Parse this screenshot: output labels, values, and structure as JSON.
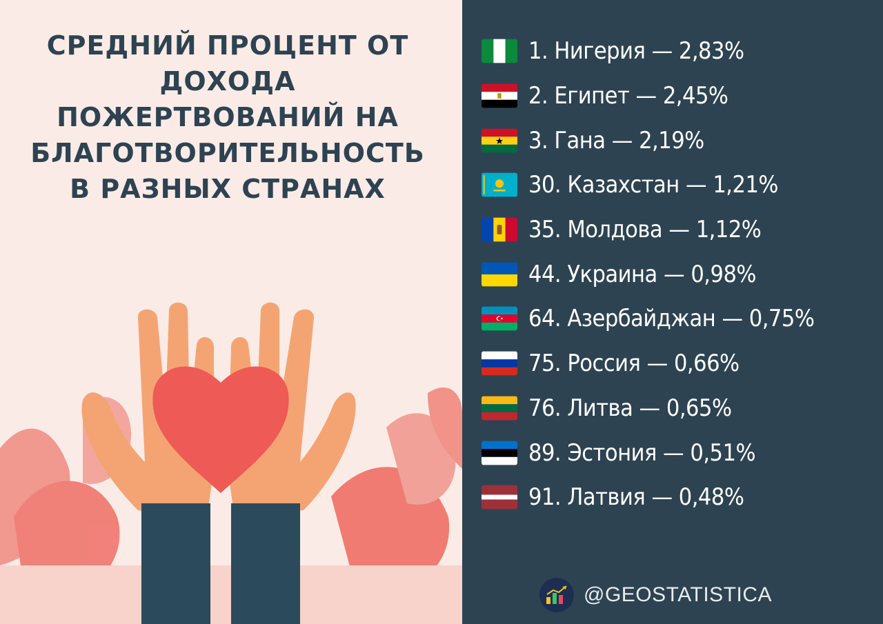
{
  "title_lines": [
    "СРЕДНИЙ ПРОЦЕНТ ОТ",
    "ДОХОДА",
    "ПОЖЕРТВОВАНИЙ НА",
    "БЛАГОТВОРИТЕЛЬНОСТЬ",
    "В РАЗНЫХ СТРАНАХ"
  ],
  "rankings": [
    {
      "rank": "1.",
      "country": "Нигерия",
      "value": "2,83%",
      "flag": "nigeria-flag-icon"
    },
    {
      "rank": "2.",
      "country": "Египет",
      "value": "2,45%",
      "flag": "egypt-flag-icon"
    },
    {
      "rank": "3.",
      "country": "Гана",
      "value": "2,19%",
      "flag": "ghana-flag-icon"
    },
    {
      "rank": "30.",
      "country": "Казахстан",
      "value": "1,21%",
      "flag": "kazakhstan-flag-icon"
    },
    {
      "rank": "35.",
      "country": "Молдова",
      "value": "1,12%",
      "flag": "moldova-flag-icon"
    },
    {
      "rank": "44.",
      "country": "Украина",
      "value": "0,98%",
      "flag": "ukraine-flag-icon"
    },
    {
      "rank": "64.",
      "country": "Азербайджан",
      "value": "0,75%",
      "flag": "azerbaijan-flag-icon"
    },
    {
      "rank": "75.",
      "country": "Россия",
      "value": "0,66%",
      "flag": "russia-flag-icon"
    },
    {
      "rank": "76.",
      "country": "Литва",
      "value": "0,65%",
      "flag": "lithuania-flag-icon"
    },
    {
      "rank": "89.",
      "country": "Эстония",
      "value": "0,51%",
      "flag": "estonia-flag-icon"
    },
    {
      "rank": "91.",
      "country": "Латвия",
      "value": "0,48%",
      "flag": "latvia-flag-icon"
    }
  ],
  "credit": "@GEOSTATISTICA",
  "colors": {
    "panel": "#2d4352",
    "background": "#fbebe6",
    "heart": "#ee5a55",
    "hands": "#f4a472",
    "sleeves": "#2b4a5c"
  }
}
